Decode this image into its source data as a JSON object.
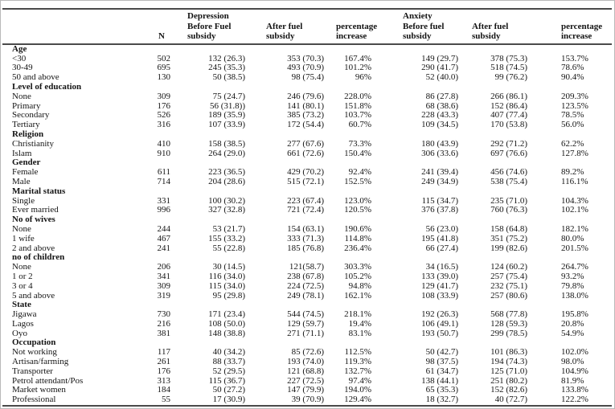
{
  "page": {
    "background": "#ffffff",
    "rule_color": "#4a4a4a",
    "text_color": "#141414"
  },
  "table": {
    "columns": [
      {
        "key": "label",
        "label": ""
      },
      {
        "key": "n",
        "label": "N"
      },
      {
        "key": "dep_before",
        "label": "Depression\nBefore Fuel\nsubsidy"
      },
      {
        "key": "dep_after",
        "label": "After fuel\nsubsidy"
      },
      {
        "key": "dep_pct",
        "label": "percentage\nincrease"
      },
      {
        "key": "anx_before",
        "label": "Anxiety\nBefore fuel\nsubsidy"
      },
      {
        "key": "anx_after",
        "label": "After fuel\nsubsidy"
      },
      {
        "key": "anx_pct",
        "label": "percentage\nincrease"
      }
    ],
    "sections": [
      {
        "label": "Age",
        "rows": [
          {
            "label": "<30",
            "n": "502",
            "dep_before": "132 (26.3)",
            "dep_after": "353 (70.3)",
            "dep_pct": "167.4%",
            "anx_before": "149 (29.7)",
            "anx_after": "378 (75.3)",
            "anx_pct": "153.7%"
          },
          {
            "label": "30-49",
            "n": "695",
            "dep_before": "245 (35.3)",
            "dep_after": "493 (70.9)",
            "dep_pct": "101.2%",
            "anx_before": "290 (41.7)",
            "anx_after": "518 (74.5)",
            "anx_pct": "78.6%"
          },
          {
            "label": "50 and above",
            "n": "130",
            "dep_before": "50 (38.5)",
            "dep_after": "98 (75.4)",
            "dep_pct": "96%",
            "anx_before": "52 (40.0)",
            "anx_after": "99 (76.2)",
            "anx_pct": "90.4%"
          }
        ]
      },
      {
        "label": "Level of education",
        "rows": [
          {
            "label": "None",
            "n": "309",
            "dep_before": "75 (24.7)",
            "dep_after": "246 (79.6)",
            "dep_pct": "228.0%",
            "anx_before": "86 (27.8)",
            "anx_after": "266 (86.1)",
            "anx_pct": "209.3%"
          },
          {
            "label": "Primary",
            "n": "176",
            "dep_before": "56 (31.8))",
            "dep_after": "141 (80.1)",
            "dep_pct": "151.8%",
            "anx_before": "68 (38.6)",
            "anx_after": "152 (86.4)",
            "anx_pct": "123.5%"
          },
          {
            "label": "Secondary",
            "n": "526",
            "dep_before": "189 (35.9)",
            "dep_after": "385 (73.2)",
            "dep_pct": "103.7%",
            "anx_before": "228 (43.3)",
            "anx_after": "407 (77.4)",
            "anx_pct": "78.5%"
          },
          {
            "label": "Tertiary",
            "n": "316",
            "dep_before": "107 (33.9)",
            "dep_after": "172 (54.4)",
            "dep_pct": "60.7%",
            "anx_before": "109 (34.5)",
            "anx_after": "170 (53.8)",
            "anx_pct": "56.0%"
          }
        ]
      },
      {
        "label": "Religion",
        "rows": [
          {
            "label": "Christianity",
            "n": "410",
            "dep_before": "158 (38.5)",
            "dep_after": "277 (67.6)",
            "dep_pct": "73.3%",
            "anx_before": "180 (43.9)",
            "anx_after": "292 (71.2)",
            "anx_pct": "62.2%"
          },
          {
            "label": "Islam",
            "n": "910",
            "dep_before": "264 (29.0)",
            "dep_after": "661 (72.6)",
            "dep_pct": "150.4%",
            "anx_before": "306 (33.6)",
            "anx_after": "697 (76.6)",
            "anx_pct": "127.8%"
          }
        ]
      },
      {
        "label": "Gender",
        "rows": [
          {
            "label": "Female",
            "n": "611",
            "dep_before": "223 (36.5)",
            "dep_after": "429 (70.2)",
            "dep_pct": "92.4%",
            "anx_before": "241 (39.4)",
            "anx_after": "456 (74.6)",
            "anx_pct": "89.2%"
          },
          {
            "label": "Male",
            "n": "714",
            "dep_before": "204 (28.6)",
            "dep_after": "515 (72.1)",
            "dep_pct": "152.5%",
            "anx_before": "249 (34.9)",
            "anx_after": "538 (75.4)",
            "anx_pct": "116.1%"
          }
        ]
      },
      {
        "label": "Marital status",
        "rows": [
          {
            "label": "Single",
            "n": "331",
            "dep_before": "100 (30.2)",
            "dep_after": "223 (67.4)",
            "dep_pct": "123.0%",
            "anx_before": "115 (34.7)",
            "anx_after": "235 (71.0)",
            "anx_pct": "104.3%"
          },
          {
            "label": "Ever married",
            "n": "996",
            "dep_before": "327 (32.8)",
            "dep_after": "721 (72.4)",
            "dep_pct": "120.5%",
            "anx_before": "376 (37.8)",
            "anx_after": "760 (76.3)",
            "anx_pct": "102.1%"
          }
        ]
      },
      {
        "label": "No of wives",
        "rows": [
          {
            "label": "None",
            "n": "244",
            "dep_before": "53 (21.7)",
            "dep_after": "154 (63.1)",
            "dep_pct": "190.6%",
            "anx_before": "56 (23.0)",
            "anx_after": "158 (64.8)",
            "anx_pct": "182.1%"
          },
          {
            "label": "1 wife",
            "n": "467",
            "dep_before": "155 (33.2)",
            "dep_after": "333 (71.3)",
            "dep_pct": "114.8%",
            "anx_before": "195 (41.8)",
            "anx_after": "351 (75.2)",
            "anx_pct": "80.0%"
          },
          {
            "label": "2 and above",
            "n": "241",
            "dep_before": "55 (22.8)",
            "dep_after": "185 (76.8)",
            "dep_pct": "236.4%",
            "anx_before": "66 (27.4)",
            "anx_after": "199 (82.6)",
            "anx_pct": "201.5%"
          }
        ]
      },
      {
        "label": "no of children",
        "rows": [
          {
            "label": "None",
            "n": "206",
            "dep_before": "30 (14.5)",
            "dep_after": "121(58.7)",
            "dep_pct": "303.3%",
            "anx_before": "34 (16.5)",
            "anx_after": "124 (60.2)",
            "anx_pct": "264.7%"
          },
          {
            "label": "1 or 2",
            "n": "341",
            "dep_before": "116 (34.0)",
            "dep_after": "238 (67.8)",
            "dep_pct": "105.2%",
            "anx_before": "133 (39.0)",
            "anx_after": "257 (75.4)",
            "anx_pct": "93.2%"
          },
          {
            "label": "3 or 4",
            "n": "309",
            "dep_before": "115 (34.0)",
            "dep_after": "224 (72.5)",
            "dep_pct": "94.8%",
            "anx_before": "129 (41.7)",
            "anx_after": "232 (75.1)",
            "anx_pct": "79.8%"
          },
          {
            "label": "5 and above",
            "n": "319",
            "dep_before": "95 (29.8)",
            "dep_after": "249 (78.1)",
            "dep_pct": "162.1%",
            "anx_before": "108 (33.9)",
            "anx_after": "257 (80.6)",
            "anx_pct": "138.0%"
          }
        ]
      },
      {
        "label": "State",
        "rows": [
          {
            "label": "Jigawa",
            "n": "730",
            "dep_before": "171 (23.4)",
            "dep_after": "544 (74.5)",
            "dep_pct": "218.1%",
            "anx_before": "192 (26.3)",
            "anx_after": "568 (77.8)",
            "anx_pct": "195.8%"
          },
          {
            "label": "Lagos",
            "n": "216",
            "dep_before": "108 (50.0)",
            "dep_after": "129 (59.7)",
            "dep_pct": "19.4%",
            "anx_before": "106 (49.1)",
            "anx_after": "128 (59.3)",
            "anx_pct": "20.8%"
          },
          {
            "label": "Oyo",
            "n": "381",
            "dep_before": "148 (38.8)",
            "dep_after": "271 (71.1)",
            "dep_pct": "83.1%",
            "anx_before": "193 (50.7)",
            "anx_after": "299 (78.5)",
            "anx_pct": "54.9%"
          }
        ]
      },
      {
        "label": "Occupation",
        "rows": [
          {
            "label": "Not working",
            "n": "117",
            "dep_before": "40 (34.2)",
            "dep_after": "85 (72.6)",
            "dep_pct": "112.5%",
            "anx_before": "50 (42.7)",
            "anx_after": "101 (86.3)",
            "anx_pct": "102.0%"
          },
          {
            "label": "Artisan/farming",
            "n": "261",
            "dep_before": "88  (33.7)",
            "dep_after": "193 (74.0)",
            "dep_pct": "119.3%",
            "anx_before": "98 (37.5)",
            "anx_after": "194 (74.3)",
            "anx_pct": "98.0%"
          },
          {
            "label": "Transporter",
            "n": "176",
            "dep_before": "52 (29.5)",
            "dep_after": "121 (68.8)",
            "dep_pct": "132.7%",
            "anx_before": "61 (34.7)",
            "anx_after": "125 (71.0)",
            "anx_pct": "104.9%"
          },
          {
            "label": "Petrol attendant/Pos",
            "n": "313",
            "dep_before": "115 (36.7)",
            "dep_after": "227 (72.5)",
            "dep_pct": "97.4%",
            "anx_before": "138 (44.1)",
            "anx_after": "251 (80.2)",
            "anx_pct": "81.9%"
          },
          {
            "label": "Market women",
            "n": "184",
            "dep_before": "50 (27.2)",
            "dep_after": "147 (79.9)",
            "dep_pct": "194.0%",
            "anx_before": "65 (35.3)",
            "anx_after": "152 (82.6)",
            "anx_pct": "133.8%"
          },
          {
            "label": "Professional",
            "n": "55",
            "dep_before": "17 (30.9)",
            "dep_after": "39 (70.9)",
            "dep_pct": "129.4%",
            "anx_before": "18 (32.7)",
            "anx_after": "40 (72.7)",
            "anx_pct": "122.2%"
          }
        ]
      }
    ]
  }
}
